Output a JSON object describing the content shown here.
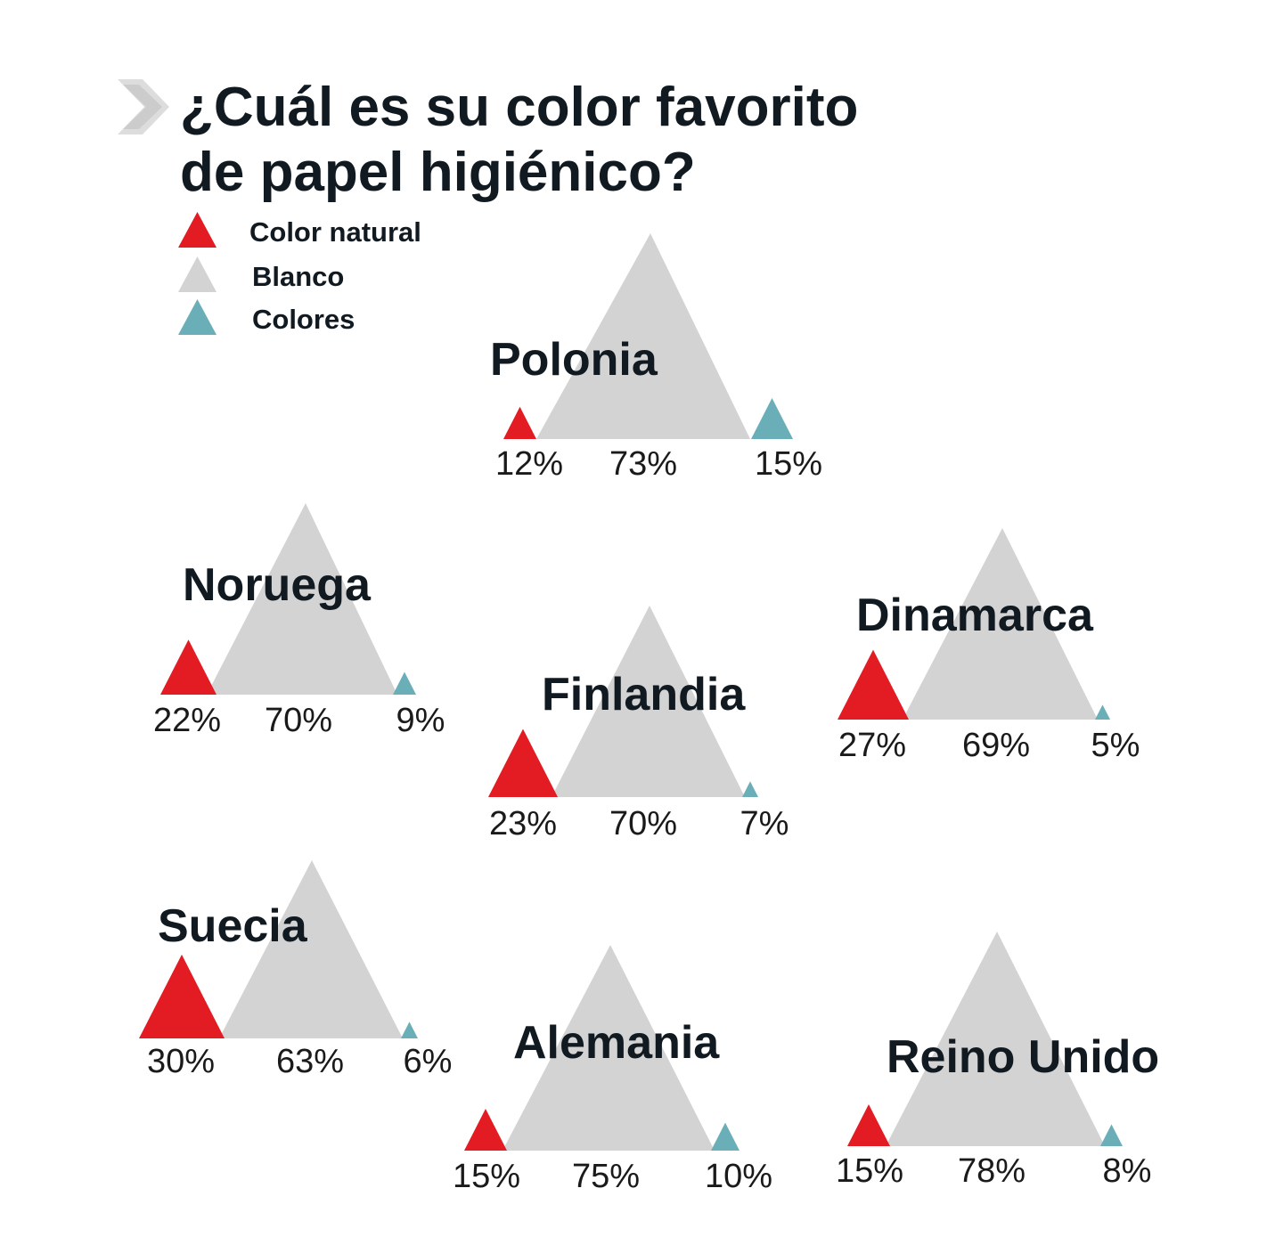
{
  "title": {
    "line1": "¿Cuál es su color favorito",
    "line2": "de papel higiénico?"
  },
  "legend": [
    {
      "label": "Color natural",
      "color": "#e31b23"
    },
    {
      "label": "Blanco",
      "color": "#d3d3d3"
    },
    {
      "label": "Colores",
      "color": "#6aaeb8"
    }
  ],
  "chart_data": {
    "type": "bar",
    "categories": [
      "Polonia",
      "Noruega",
      "Finlandia",
      "Dinamarca",
      "Suecia",
      "Alemania",
      "Reino Unido"
    ],
    "series": [
      {
        "name": "Color natural",
        "values": [
          12,
          22,
          23,
          27,
          30,
          15,
          15
        ],
        "labels": [
          "12%",
          "22%",
          "23%",
          "27%",
          "30%",
          "15%",
          "15%"
        ]
      },
      {
        "name": "Blanco",
        "values": [
          73,
          70,
          70,
          69,
          63,
          75,
          78
        ],
        "labels": [
          "73%",
          "70%",
          "70%",
          "69%",
          "63%",
          "75%",
          "78%"
        ]
      },
      {
        "name": "Colores",
        "values": [
          15,
          9,
          7,
          5,
          6,
          10,
          8
        ],
        "labels": [
          "15%",
          "9%",
          "7%",
          "5%",
          "6%",
          "10%",
          "8%"
        ]
      }
    ],
    "colors": {
      "natural": "#e31b23",
      "blanco": "#d3d3d3",
      "colores": "#6aaeb8"
    },
    "unit": "%"
  }
}
